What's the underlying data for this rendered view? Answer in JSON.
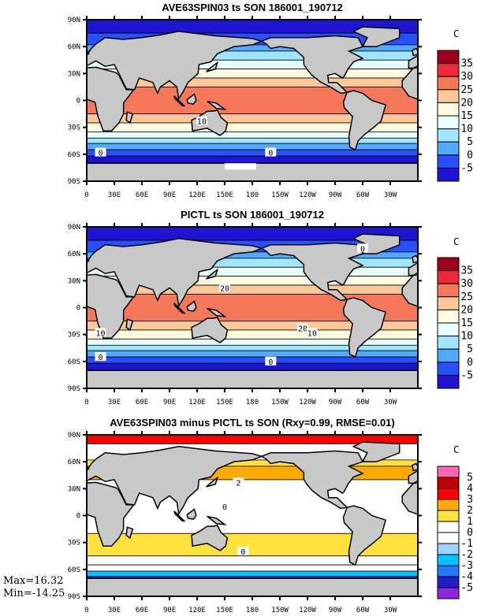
{
  "chart_data": [
    {
      "type": "heatmap",
      "title": "AVE63SPIN03 ts SON 186001_190712",
      "units": "C",
      "levels": [
        -5,
        0,
        5,
        10,
        15,
        20,
        25,
        30,
        35
      ],
      "colors": [
        "#1e14d2",
        "#2850ff",
        "#50aaff",
        "#a0e6ff",
        "#e6ffff",
        "#fffae0",
        "#fac896",
        "#f5785a",
        "#f0283c",
        "#a00020"
      ],
      "contour_labels": [
        "10",
        "0",
        "0"
      ],
      "bands": [
        [
          90,
          75,
          0
        ],
        [
          75,
          62,
          1
        ],
        [
          62,
          55,
          2
        ],
        [
          55,
          45,
          3
        ],
        [
          45,
          35,
          4
        ],
        [
          35,
          25,
          5
        ],
        [
          25,
          15,
          6
        ],
        [
          15,
          -15,
          7
        ],
        [
          -15,
          -25,
          6
        ],
        [
          -25,
          -35,
          5
        ],
        [
          -35,
          -42,
          4
        ],
        [
          -42,
          -48,
          3
        ],
        [
          -48,
          -55,
          2
        ],
        [
          -55,
          -62,
          1
        ],
        [
          -62,
          -70,
          0
        ]
      ]
    },
    {
      "type": "heatmap",
      "title": "PICTL ts SON 186001_190712",
      "units": "C",
      "levels": [
        -5,
        0,
        5,
        10,
        15,
        20,
        25,
        30,
        35
      ],
      "colors": [
        "#1e14d2",
        "#2850ff",
        "#50aaff",
        "#a0e6ff",
        "#e6ffff",
        "#fffae0",
        "#fac896",
        "#f5785a",
        "#f0283c",
        "#a00020"
      ],
      "contour_labels": [
        "20",
        "20",
        "10",
        "10",
        "0",
        "0",
        "0"
      ],
      "bands": [
        [
          90,
          75,
          0
        ],
        [
          75,
          62,
          1
        ],
        [
          62,
          55,
          2
        ],
        [
          55,
          45,
          3
        ],
        [
          45,
          35,
          4
        ],
        [
          35,
          25,
          5
        ],
        [
          25,
          15,
          6
        ],
        [
          15,
          -15,
          7
        ],
        [
          -15,
          -25,
          6
        ],
        [
          -25,
          -35,
          5
        ],
        [
          -35,
          -42,
          4
        ],
        [
          -42,
          -48,
          3
        ],
        [
          -48,
          -55,
          2
        ],
        [
          -55,
          -62,
          1
        ],
        [
          -62,
          -70,
          0
        ]
      ]
    },
    {
      "type": "heatmap",
      "title": "AVE63SPIN03 minus PICTL ts SON (Rxy=0.99, RMSE=0.01)",
      "units": "C",
      "levels": [
        -5,
        -4,
        -3,
        -2,
        -1,
        0,
        1,
        2,
        3,
        4,
        5
      ],
      "colors": [
        "#8c28dc",
        "#1e1ec8",
        "#2878ff",
        "#00c3ff",
        "#a0d2ff",
        "#ffffff",
        "#ffffff",
        "#ffe13c",
        "#ffaa00",
        "#ff0000",
        "#c00000",
        "#ff64b4"
      ],
      "contour_labels": [
        "2",
        "0",
        "0"
      ],
      "bands": [
        [
          90,
          80,
          9
        ],
        [
          80,
          62,
          6
        ],
        [
          62,
          55,
          7
        ],
        [
          55,
          40,
          8
        ],
        [
          40,
          -20,
          6
        ],
        [
          -20,
          -45,
          7
        ],
        [
          -45,
          -55,
          6
        ],
        [
          -55,
          -62,
          6
        ],
        [
          -62,
          -68,
          3
        ],
        [
          -68,
          -70,
          1
        ]
      ],
      "max": "Max=16.32",
      "min": "Min=-14.25"
    }
  ],
  "lat_ticks": [
    "90N",
    "60N",
    "30N",
    "0",
    "30S",
    "60S",
    "90S"
  ],
  "lon_ticks": [
    "0",
    "30E",
    "60E",
    "90E",
    "120E",
    "150E",
    "180",
    "150W",
    "120W",
    "90W",
    "60W",
    "30W"
  ]
}
